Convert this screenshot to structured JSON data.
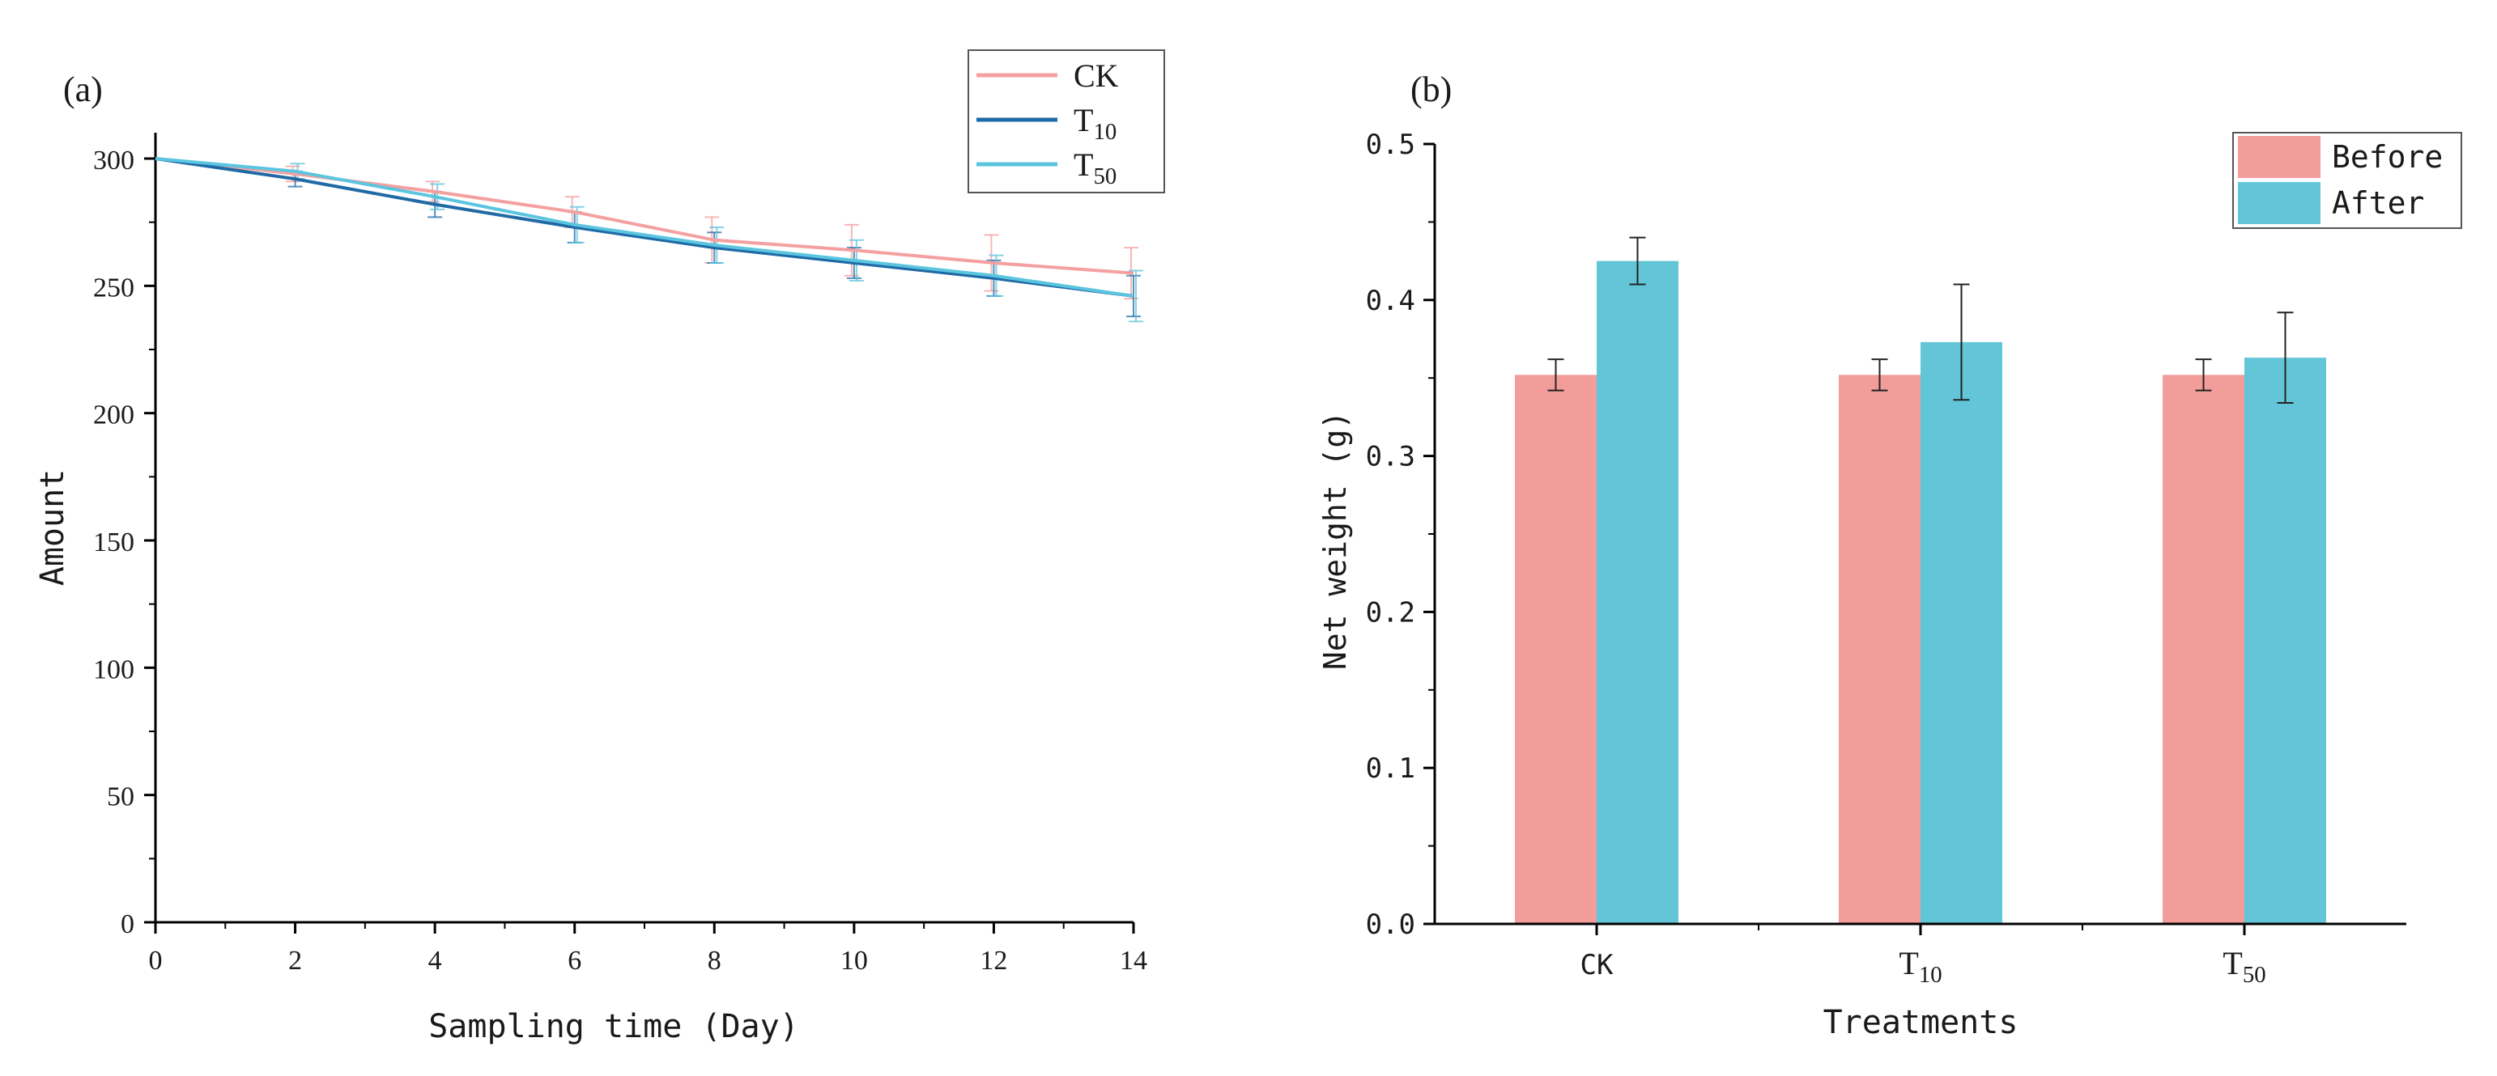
{
  "chart_data": [
    {
      "type": "line",
      "panel_label": "(a)",
      "title": "",
      "xlabel": "Sampling time (Day)",
      "ylabel": "Amount",
      "xlim": [
        0,
        14
      ],
      "ylim": [
        0,
        300
      ],
      "x_ticks": [
        "0",
        "2",
        "4",
        "6",
        "8",
        "10",
        "12",
        "14"
      ],
      "y_ticks": [
        "0",
        "50",
        "100",
        "150",
        "200",
        "250",
        "300"
      ],
      "x": [
        0,
        2,
        4,
        6,
        8,
        10,
        12,
        14
      ],
      "series": [
        {
          "name": "CK",
          "name_base": "CK",
          "name_sub": "",
          "color": "#f4a0a0",
          "values": [
            300,
            294,
            287,
            279,
            268,
            264,
            259,
            255
          ],
          "errors": [
            0,
            3,
            4,
            6,
            9,
            10,
            11,
            10
          ]
        },
        {
          "name": "T10",
          "name_base": "T",
          "name_sub": "10",
          "color": "#1f6aa5",
          "values": [
            300,
            292,
            282,
            273,
            265,
            259,
            253,
            246
          ],
          "errors": [
            0,
            3,
            5,
            6,
            6,
            6,
            7,
            8
          ]
        },
        {
          "name": "T50",
          "name_base": "T",
          "name_sub": "50",
          "color": "#5bc5e0",
          "values": [
            300,
            295,
            285,
            274,
            266,
            260,
            254,
            246
          ],
          "errors": [
            0,
            3,
            5,
            7,
            7,
            8,
            8,
            10
          ]
        }
      ],
      "legend_position": "top-right",
      "grid": false
    },
    {
      "type": "bar",
      "panel_label": "(b)",
      "title": "",
      "xlabel": "Treatments",
      "ylabel": "Net weight (g)",
      "ylim": [
        0,
        0.5
      ],
      "y_ticks": [
        "0.0",
        "0.1",
        "0.2",
        "0.3",
        "0.4",
        "0.5"
      ],
      "categories": [
        {
          "label": "CK",
          "base": "CK",
          "sub": ""
        },
        {
          "label": "T10",
          "base": "T",
          "sub": "10"
        },
        {
          "label": "T50",
          "base": "T",
          "sub": "50"
        }
      ],
      "series": [
        {
          "name": "Before",
          "color": "#f29d9a",
          "values": [
            0.352,
            0.352,
            0.352
          ],
          "errors": [
            0.01,
            0.01,
            0.01
          ]
        },
        {
          "name": "After",
          "color": "#63c5d8",
          "values": [
            0.425,
            0.373,
            0.363
          ],
          "errors": [
            0.015,
            0.037,
            0.029
          ]
        }
      ],
      "legend_position": "top-right",
      "grid": false
    }
  ]
}
